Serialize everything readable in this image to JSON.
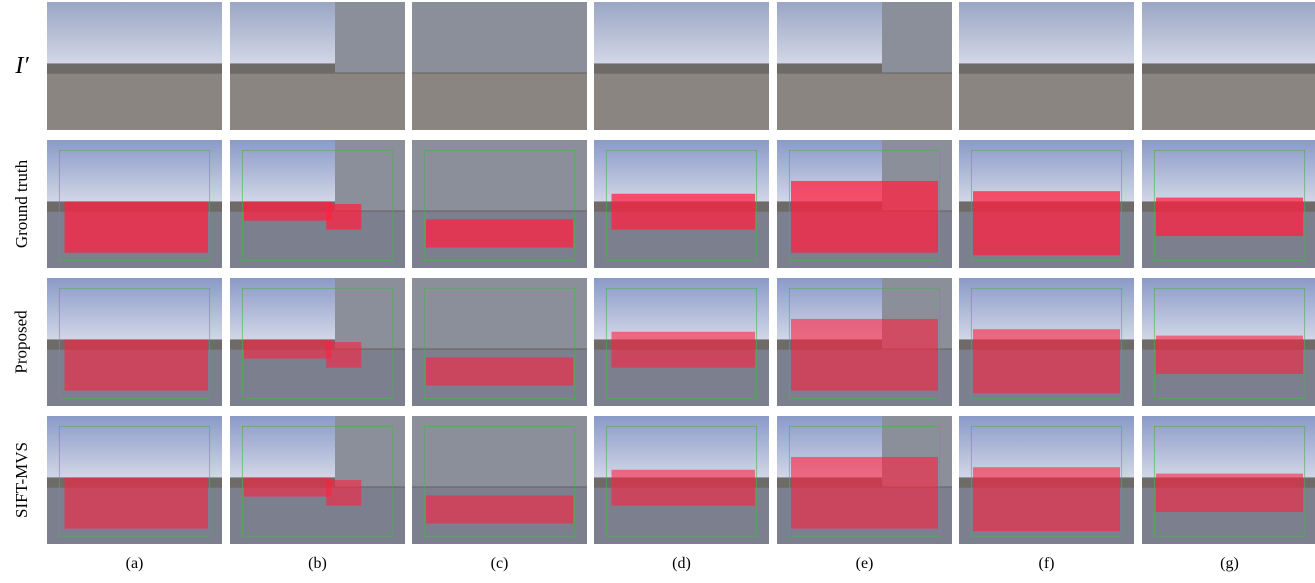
{
  "rows": [
    "I′",
    "Ground truth",
    "Proposed",
    "SIFT-MVS"
  ],
  "columns": [
    "(a)",
    "(b)",
    "(c)",
    "(d)",
    "(e)",
    "(f)",
    "(g)"
  ]
}
